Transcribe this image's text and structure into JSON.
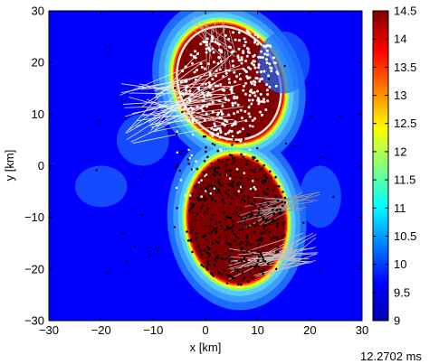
{
  "chart_data": {
    "type": "heatmap",
    "title": "",
    "xlabel": "x [km]",
    "ylabel": "y [km]",
    "xlim": [
      -30,
      30
    ],
    "ylim": [
      -30,
      30
    ],
    "xticks": [
      -30,
      -20,
      -10,
      0,
      10,
      20,
      30
    ],
    "yticks": [
      -30,
      -20,
      -10,
      0,
      10,
      20,
      30
    ],
    "xtick_labels": [
      "−30",
      "−20",
      "−10",
      "0",
      "10",
      "20",
      "30"
    ],
    "ytick_labels": [
      "−30",
      "−20",
      "−10",
      "0",
      "10",
      "20",
      "30"
    ],
    "grid": false,
    "colorbar": {
      "range": [
        9,
        14.5
      ],
      "ticks": [
        9,
        9.5,
        10,
        10.5,
        11,
        11.5,
        12,
        12.5,
        13,
        13.5,
        14,
        14.5
      ],
      "tick_labels": [
        "9",
        "9.5",
        "10",
        "10.5",
        "11",
        "11.5",
        "12",
        "12.5",
        "13",
        "13.5",
        "14",
        "14.5"
      ],
      "colormap": "jet",
      "placement": "right"
    },
    "background_value": 9,
    "lobes": [
      {
        "cx": 4.5,
        "cy": 16,
        "rx": 10,
        "ry": 12,
        "rotation": -30,
        "core_value": 14.5
      },
      {
        "cx": 6,
        "cy": -10.5,
        "rx": 9.5,
        "ry": 12.5,
        "rotation": -5,
        "core_value": 14.5
      }
    ],
    "time_label": "12.2702 ms"
  }
}
